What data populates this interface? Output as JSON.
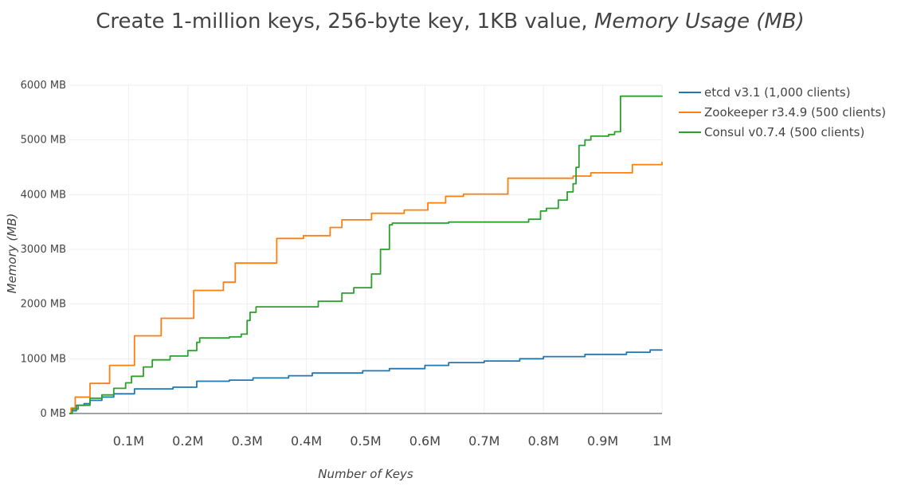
{
  "chart_data": {
    "type": "line",
    "title": "Create 1-million keys, 256-byte key, 1KB value, ",
    "title_italic": "Memory Usage (MB)",
    "xlabel": "Number of Keys",
    "ylabel": "Memory (MB)",
    "xlim": [
      0,
      1000000
    ],
    "ylim": [
      0,
      6000
    ],
    "y_ticks": [
      0,
      1000,
      2000,
      3000,
      4000,
      5000,
      6000
    ],
    "y_tick_labels": [
      "0 MB",
      "1000 MB",
      "2000 MB",
      "3000 MB",
      "4000 MB",
      "5000 MB",
      "6000 MB"
    ],
    "x_ticks": [
      100000,
      200000,
      300000,
      400000,
      500000,
      600000,
      700000,
      800000,
      900000,
      1000000
    ],
    "x_tick_labels": [
      "0.1M",
      "0.2M",
      "0.3M",
      "0.4M",
      "0.5M",
      "0.6M",
      "0.7M",
      "0.8M",
      "0.9M",
      "1M"
    ],
    "grid": true,
    "legend": "top-right",
    "series": [
      {
        "name": "etcd v3.1 (1,000 clients)",
        "color": "#1f77b4",
        "points": [
          [
            0,
            0
          ],
          [
            5000,
            50
          ],
          [
            12000,
            150
          ],
          [
            25000,
            180
          ],
          [
            35000,
            240
          ],
          [
            55000,
            300
          ],
          [
            75000,
            360
          ],
          [
            110000,
            450
          ],
          [
            175000,
            480
          ],
          [
            215000,
            590
          ],
          [
            270000,
            610
          ],
          [
            310000,
            650
          ],
          [
            370000,
            690
          ],
          [
            410000,
            740
          ],
          [
            495000,
            780
          ],
          [
            540000,
            820
          ],
          [
            600000,
            880
          ],
          [
            640000,
            930
          ],
          [
            700000,
            960
          ],
          [
            760000,
            1000
          ],
          [
            800000,
            1040
          ],
          [
            870000,
            1080
          ],
          [
            940000,
            1120
          ],
          [
            980000,
            1160
          ],
          [
            1000000,
            1170
          ]
        ]
      },
      {
        "name": "Zookeeper r3.4.9 (500 clients)",
        "color": "#ff7f0e",
        "points": [
          [
            0,
            0
          ],
          [
            3000,
            100
          ],
          [
            10000,
            300
          ],
          [
            35000,
            550
          ],
          [
            68000,
            880
          ],
          [
            110000,
            1420
          ],
          [
            155000,
            1740
          ],
          [
            210000,
            2250
          ],
          [
            260000,
            2400
          ],
          [
            280000,
            2750
          ],
          [
            350000,
            3200
          ],
          [
            395000,
            3250
          ],
          [
            440000,
            3400
          ],
          [
            460000,
            3540
          ],
          [
            510000,
            3660
          ],
          [
            565000,
            3720
          ],
          [
            605000,
            3850
          ],
          [
            635000,
            3970
          ],
          [
            665000,
            4010
          ],
          [
            740000,
            4300
          ],
          [
            850000,
            4340
          ],
          [
            880000,
            4400
          ],
          [
            950000,
            4550
          ],
          [
            1000000,
            4600
          ]
        ]
      },
      {
        "name": "Consul v0.7.4 (500 clients)",
        "color": "#2ca02c",
        "points": [
          [
            0,
            0
          ],
          [
            5000,
            80
          ],
          [
            15000,
            150
          ],
          [
            35000,
            280
          ],
          [
            55000,
            340
          ],
          [
            75000,
            460
          ],
          [
            95000,
            560
          ],
          [
            105000,
            680
          ],
          [
            125000,
            850
          ],
          [
            140000,
            980
          ],
          [
            170000,
            1050
          ],
          [
            200000,
            1150
          ],
          [
            215000,
            1300
          ],
          [
            220000,
            1380
          ],
          [
            270000,
            1400
          ],
          [
            290000,
            1450
          ],
          [
            300000,
            1700
          ],
          [
            305000,
            1850
          ],
          [
            315000,
            1950
          ],
          [
            400000,
            1950
          ],
          [
            420000,
            2050
          ],
          [
            460000,
            2200
          ],
          [
            480000,
            2300
          ],
          [
            510000,
            2550
          ],
          [
            525000,
            3000
          ],
          [
            540000,
            3450
          ],
          [
            545000,
            3480
          ],
          [
            640000,
            3500
          ],
          [
            775000,
            3550
          ],
          [
            795000,
            3700
          ],
          [
            805000,
            3750
          ],
          [
            825000,
            3900
          ],
          [
            840000,
            4050
          ],
          [
            850000,
            4200
          ],
          [
            855000,
            4500
          ],
          [
            860000,
            4900
          ],
          [
            870000,
            5000
          ],
          [
            880000,
            5070
          ],
          [
            910000,
            5100
          ],
          [
            920000,
            5150
          ],
          [
            930000,
            5800
          ],
          [
            1000000,
            5810
          ]
        ]
      }
    ]
  }
}
